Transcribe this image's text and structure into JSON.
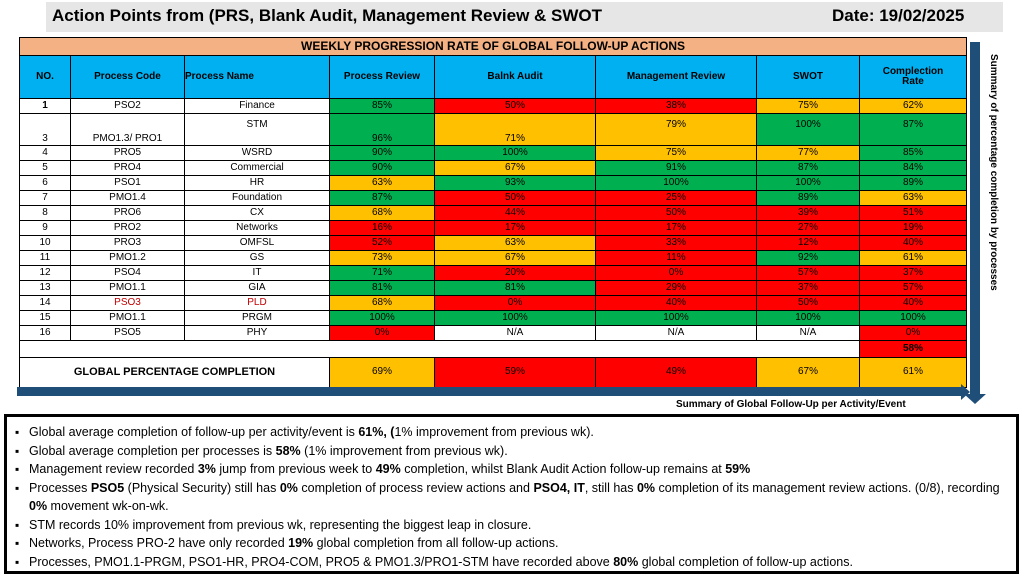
{
  "header": {
    "title": "Action Points  from (PRS, Blank Audit, Management Review & SWOT",
    "date": "Date: 19/02/2025"
  },
  "table": {
    "title": "WEEKLY PROGRESSION RATE OF GLOBAL  FOLLOW-UP ACTIONS",
    "columns": {
      "no": "NO.",
      "process_code": "Process Code",
      "process_name": "Process Name",
      "process_review": "Process Review",
      "blank_audit": "Balnk Audit",
      "management_review": "Management Review",
      "swot": "SWOT",
      "completion_rate": "Complection Rate"
    },
    "rows": [
      {
        "no": "1",
        "code": "PSO2",
        "name": "Finance",
        "pr": "85%",
        "ba": "50%",
        "mr": "38%",
        "swot": "75%",
        "rate": "62%"
      },
      {
        "no": "3",
        "code": "PMO1.3/ PRO1",
        "name": "STM",
        "pr": "96%",
        "ba": "71%",
        "mr": "79%",
        "swot": "100%",
        "rate": "87%"
      },
      {
        "no": "4",
        "code": "PRO5",
        "name": "WSRD",
        "pr": "90%",
        "ba": "100%",
        "mr": "75%",
        "swot": "77%",
        "rate": "85%"
      },
      {
        "no": "5",
        "code": "PRO4",
        "name": "Commercial",
        "pr": "90%",
        "ba": "67%",
        "mr": "91%",
        "swot": "87%",
        "rate": "84%"
      },
      {
        "no": "6",
        "code": "PSO1",
        "name": "HR",
        "pr": "63%",
        "ba": "93%",
        "mr": "100%",
        "swot": "100%",
        "rate": "89%"
      },
      {
        "no": "7",
        "code": "PMO1.4",
        "name": "Foundation",
        "pr": "87%",
        "ba": "50%",
        "mr": "25%",
        "swot": "89%",
        "rate": "63%"
      },
      {
        "no": "8",
        "code": "PRO6",
        "name": "CX",
        "pr": "68%",
        "ba": "44%",
        "mr": "50%",
        "swot": "39%",
        "rate": "51%"
      },
      {
        "no": "9",
        "code": "PRO2",
        "name": "Networks",
        "pr": "16%",
        "ba": "17%",
        "mr": "17%",
        "swot": "27%",
        "rate": "19%"
      },
      {
        "no": "10",
        "code": "PRO3",
        "name": "OMFSL",
        "pr": "52%",
        "ba": "63%",
        "mr": "33%",
        "swot": "12%",
        "rate": "40%"
      },
      {
        "no": "11",
        "code": "PMO1.2",
        "name": "GS",
        "pr": "73%",
        "ba": "67%",
        "mr": "11%",
        "swot": "92%",
        "rate": "61%"
      },
      {
        "no": "12",
        "code": "PSO4",
        "name": "IT",
        "pr": "71%",
        "ba": "20%",
        "mr": "0%",
        "swot": "57%",
        "rate": "37%"
      },
      {
        "no": "13",
        "code": "PMO1.1",
        "name": "GIA",
        "pr": "81%",
        "ba": "81%",
        "mr": "29%",
        "swot": "37%",
        "rate": "57%"
      },
      {
        "no": "14",
        "code": "PSO3",
        "name": "PLD",
        "pr": "68%",
        "ba": "0%",
        "mr": "40%",
        "swot": "50%",
        "rate": "40%"
      },
      {
        "no": "15",
        "code": "PMO1.1",
        "name": "PRGM",
        "pr": "100%",
        "ba": "100%",
        "mr": "100%",
        "swot": "100%",
        "rate": "100%"
      },
      {
        "no": "16",
        "code": "PSO5",
        "name": "PHY",
        "pr": "0%",
        "ba": "N/A",
        "mr": "N/A",
        "swot": "N/A",
        "rate": "0%"
      }
    ],
    "process_total": "58%",
    "global": {
      "label": "GLOBAL PERCENTAGE COMPLETION",
      "pr": "69%",
      "ba": "59%",
      "mr": "49%",
      "swot": "67%",
      "rate": "61%"
    }
  },
  "side_label": "Summary of percentage completion by processes",
  "bottom_label": "Summary of Global Follow-Up per Activity/Event",
  "notes": [
    {
      "before": "Global average completion of follow-up per activity/event is ",
      "bold": "61%, (",
      "after": "1% improvement from previous wk)."
    },
    {
      "before": "Global average completion per processes is ",
      "bold": "58%",
      "after": " (1% improvement from previous wk)."
    },
    {
      "before": "Management review recorded ",
      "bold": "3%",
      "after": " jump from previous week to ",
      "bold2": "49%",
      "after2": " completion, whilst Blank Audit Action follow-up remains at ",
      "bold3": "59%"
    },
    {
      "before": "Processes ",
      "bold": "PSO5",
      "after": " (Physical Security) still has ",
      "bold2": "0%",
      "after2": " completion of process review actions and ",
      "bold3": "PSO4, IT",
      "after3": ", still has ",
      "bold4": "0%",
      "after4": " completion of its management review actions. (0/8), recording ",
      "bold5": "0%",
      "after5": " movement wk-on-wk."
    },
    {
      "before": "STM records 10% improvement from previous wk, representing the biggest leap in closure."
    },
    {
      "before": "Networks, Process PRO-2 have only recorded ",
      "bold": "19%",
      "after": " global completion from all follow-up actions."
    },
    {
      "before": "Processes, PMO1.1-PRGM, PSO1-HR, PRO4-COM, PRO5 & PMO1.3/PRO1-STM have recorded above ",
      "bold": "80%",
      "after": " global completion of follow-up actions."
    }
  ],
  "colors": {
    "green": "#00b050",
    "red": "#ff0000",
    "amber": "#ffc000",
    "header_blue": "#00b0f0",
    "title_orange": "#f4b183",
    "arrow_blue": "#1f4e79"
  }
}
